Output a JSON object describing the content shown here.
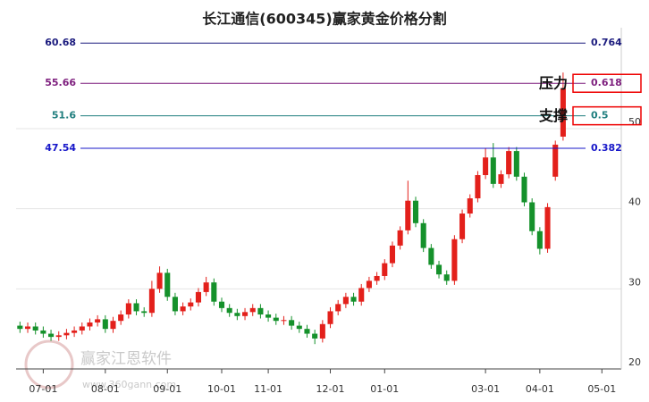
{
  "chart_data": {
    "type": "candlestick",
    "title": "长江通信(600345)赢家黄金价格分割",
    "watermark": [
      "赢家江恩软件",
      "www.360gann.com"
    ],
    "categories": [
      null,
      null,
      null,
      "07-01",
      null,
      null,
      null,
      null,
      null,
      null,
      null,
      "08-01",
      null,
      null,
      null,
      null,
      null,
      null,
      null,
      "09-01",
      null,
      null,
      null,
      null,
      null,
      null,
      "10-01",
      null,
      null,
      null,
      null,
      null,
      "11-01",
      null,
      null,
      null,
      null,
      null,
      null,
      null,
      "12-01",
      null,
      null,
      null,
      null,
      null,
      null,
      "01-01",
      null,
      null,
      null,
      null,
      null,
      null,
      null,
      null,
      null,
      null,
      null,
      null,
      "03-01",
      null,
      null,
      null,
      null,
      null,
      null,
      "04-01",
      null,
      null,
      null,
      null,
      null,
      null,
      null,
      "05-01",
      null,
      null
    ],
    "open": [
      25.4,
      25,
      25.3,
      24.8,
      24.4,
      24,
      24.2,
      24.5,
      24.8,
      25.3,
      25.8,
      26.2,
      25,
      26,
      26.8,
      28.2,
      27.2,
      27,
      30,
      32,
      29,
      27.2,
      27.8,
      28.3,
      29.6,
      30.8,
      28.4,
      27.6,
      27,
      26.6,
      27.1,
      27.6,
      26.8,
      26.4,
      26,
      26.1,
      25.4,
      25,
      24.4,
      23.8,
      25.6,
      27.2,
      28.1,
      29,
      28.4,
      30.1,
      31,
      31.6,
      33.2,
      35.4,
      37.3,
      41,
      38.2,
      35.1,
      33,
      31.8,
      31,
      36.2,
      39.4,
      41.3,
      44.2,
      46.4,
      43.1,
      44.3,
      47.2,
      44,
      40.8,
      37.2,
      35,
      44,
      49,
      null,
      null,
      null,
      null,
      null,
      null,
      null
    ],
    "high": [
      25.9,
      25.8,
      25.8,
      25.3,
      24.9,
      24.7,
      25,
      25.3,
      25.8,
      26.3,
      26.7,
      26.7,
      26.5,
      27.3,
      28.7,
      28.7,
      27.7,
      31,
      32.8,
      32.5,
      29.5,
      28.3,
      28.8,
      30.1,
      31.5,
      31.3,
      28.9,
      28.1,
      27.5,
      27.6,
      28.1,
      28.1,
      27.3,
      26.9,
      26.6,
      26.6,
      25.9,
      25.5,
      24.9,
      26.1,
      27.7,
      28.6,
      29.5,
      29.5,
      30.6,
      31.5,
      32.1,
      33.7,
      35.9,
      37.8,
      43.5,
      41.5,
      38.7,
      35.6,
      33.5,
      32.3,
      36.7,
      39.9,
      41.8,
      44.7,
      47.5,
      48.2,
      44.8,
      47.7,
      47.7,
      44.5,
      41.3,
      37.7,
      40.7,
      48.5,
      57,
      null,
      null,
      null,
      null,
      null,
      null,
      null
    ],
    "low": [
      24.5,
      24.5,
      24.3,
      23.9,
      23.5,
      23.5,
      23.7,
      24,
      24.3,
      24.8,
      25.3,
      24.5,
      24.5,
      25.5,
      26.3,
      26.7,
      26.5,
      26.5,
      29.5,
      28.5,
      26.7,
      26.7,
      27.3,
      27.8,
      29.1,
      27.9,
      27.1,
      26.5,
      26.1,
      26.1,
      26.6,
      26.3,
      25.9,
      25.5,
      25.5,
      24.9,
      24.5,
      23.9,
      23.1,
      23.3,
      25.1,
      26.7,
      27.6,
      27.9,
      27.9,
      29.6,
      30.5,
      31.1,
      32.7,
      34.9,
      36.8,
      37.7,
      34.6,
      32.5,
      31.3,
      30.5,
      30.5,
      35.7,
      38.9,
      40.8,
      43.7,
      42.6,
      42.6,
      43.8,
      43.5,
      40.3,
      36.7,
      34.3,
      34.5,
      43.5,
      48.5,
      null,
      null,
      null,
      null,
      null,
      null,
      null
    ],
    "close": [
      25,
      25.3,
      24.8,
      24.4,
      24,
      24.2,
      24.5,
      24.8,
      25.3,
      25.8,
      26.2,
      25,
      26,
      26.8,
      28.2,
      27.2,
      27,
      30,
      32,
      29,
      27.2,
      27.8,
      28.3,
      29.6,
      30.8,
      28.4,
      27.6,
      27,
      26.6,
      27.1,
      27.6,
      26.8,
      26.4,
      26,
      26.1,
      25.4,
      25,
      24.4,
      23.8,
      25.6,
      27.2,
      28.1,
      29,
      28.4,
      30.1,
      31,
      31.6,
      33.2,
      35.4,
      37.3,
      41,
      38.2,
      35.1,
      33,
      31.8,
      31,
      36.2,
      39.4,
      41.3,
      44.2,
      46.4,
      43.1,
      44.3,
      47.2,
      44,
      40.8,
      37.2,
      35,
      40.2,
      48,
      55,
      null,
      null,
      null,
      null,
      null,
      null,
      null
    ],
    "up_color": "#e3201b",
    "down_color": "#15912b",
    "ylim": [
      20,
      62.6
    ],
    "yticks": [
      20,
      30,
      40,
      50
    ],
    "grid": true,
    "levels": [
      {
        "value": 60.68,
        "ratio": 0.764,
        "color": "#1b1b7e"
      },
      {
        "value": 55.66,
        "ratio": 0.618,
        "color": "#7e1f7e",
        "annotation": "压力"
      },
      {
        "value": 51.6,
        "ratio": 0.5,
        "color": "#1f7e7e",
        "annotation": "支撑"
      },
      {
        "value": 47.54,
        "ratio": 0.382,
        "color": "#1717c9"
      }
    ]
  }
}
